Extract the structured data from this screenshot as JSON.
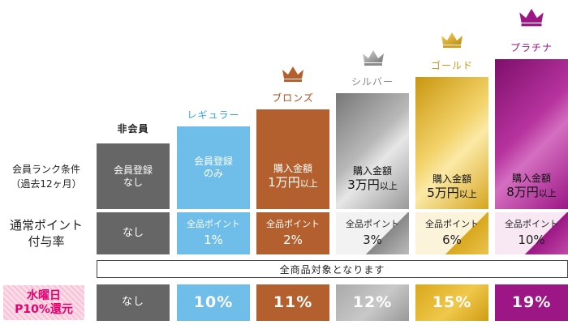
{
  "row_labels": {
    "rank_condition_line1": "会員ランク条件",
    "rank_condition_line2": "（過去12ヶ月）",
    "normal_point_line1": "通常ポイント",
    "normal_point_line2": "付与率",
    "wednesday_line1": "水曜日",
    "wednesday_line2": "P10%還元"
  },
  "all_products_note": "全商品対象となります",
  "columns": [
    {
      "label": "非会員",
      "condition_line1": "会員登録",
      "condition_line2": "なし",
      "point_text": "なし",
      "point_pct": "",
      "wednesday": "なし",
      "color": "#666666"
    },
    {
      "label": "レギュラー",
      "condition_line1": "会員登録",
      "condition_line2": "のみ",
      "point_text": "全品ポイント",
      "point_pct": "1%",
      "wednesday": "10%",
      "color": "#6fbde9"
    },
    {
      "label": "ブロンズ",
      "condition_line1": "購入金額",
      "condition_amount": "1万円",
      "condition_unit": "以上",
      "point_text": "全品ポイント",
      "point_pct": "2%",
      "wednesday": "11%",
      "color": "#b4602e"
    },
    {
      "label": "シルバー",
      "condition_line1": "購入金額",
      "condition_amount": "3万円",
      "condition_unit": "以上",
      "point_text": "全品ポイント",
      "point_pct": "3%",
      "wednesday": "12%",
      "color": "#9e9e9e"
    },
    {
      "label": "ゴールド",
      "condition_line1": "購入金額",
      "condition_amount": "5万円",
      "condition_unit": "以上",
      "point_text": "全品ポイント",
      "point_pct": "6%",
      "wednesday": "15%",
      "color": "#d9a81c"
    },
    {
      "label": "プラチナ",
      "condition_line1": "購入金額",
      "condition_amount": "8万円",
      "condition_unit": "以上",
      "point_text": "全品ポイント",
      "point_pct": "10%",
      "wednesday": "19%",
      "color": "#9c1685"
    }
  ],
  "icons": {
    "crown": "crown-icon"
  }
}
